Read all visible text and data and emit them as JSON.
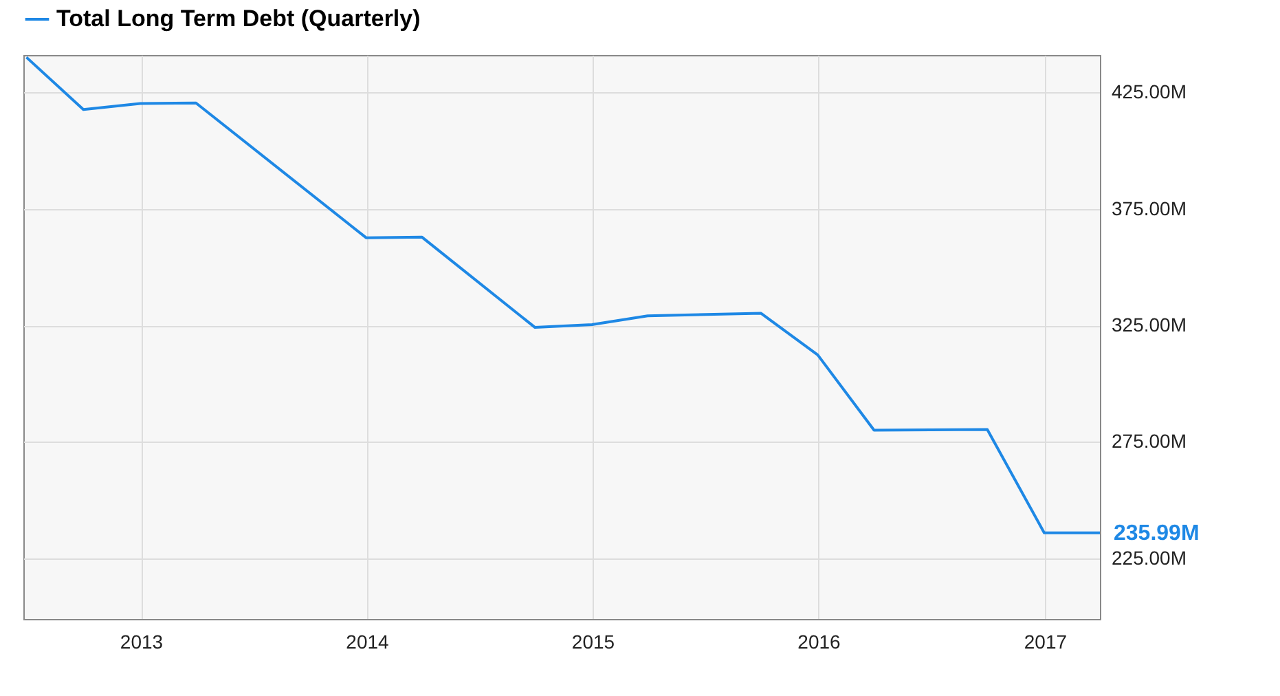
{
  "chart_data": {
    "type": "line",
    "x": [
      "2012-06-30",
      "2012-09-30",
      "2012-12-31",
      "2013-03-31",
      "2013-12-31",
      "2014-03-31",
      "2014-09-30",
      "2014-12-31",
      "2015-03-31",
      "2015-09-30",
      "2015-12-31",
      "2016-03-31",
      "2016-09-30",
      "2016-12-31",
      "2017-03-31"
    ],
    "series": [
      {
        "name": "Total Long Term Debt (Quarterly)",
        "color": "#1e88e5",
        "values": [
          440,
          417.6,
          420.2,
          420.4,
          362.6,
          362.9,
          324.1,
          325.3,
          329.1,
          330.2,
          312.3,
          280.0,
          280.3,
          235.99,
          235.99
        ]
      }
    ],
    "xlim": [
      "2012-06-25",
      "2017-03-31"
    ],
    "xticks": [
      "2013",
      "2014",
      "2015",
      "2016",
      "2017"
    ],
    "ylim": [
      199,
      441
    ],
    "yticks": [
      {
        "value": 225,
        "label": "225.00M"
      },
      {
        "value": 275,
        "label": "275.00M"
      },
      {
        "value": 325,
        "label": "325.00M"
      },
      {
        "value": 375,
        "label": "375.00M"
      },
      {
        "value": 425,
        "label": "425.00M"
      }
    ],
    "annotations": [
      {
        "text": "235.99M",
        "x": "2017-03-31",
        "y": 235.99
      }
    ],
    "grid": true,
    "legend": "top left",
    "marker": "none",
    "line_style": "solid"
  }
}
